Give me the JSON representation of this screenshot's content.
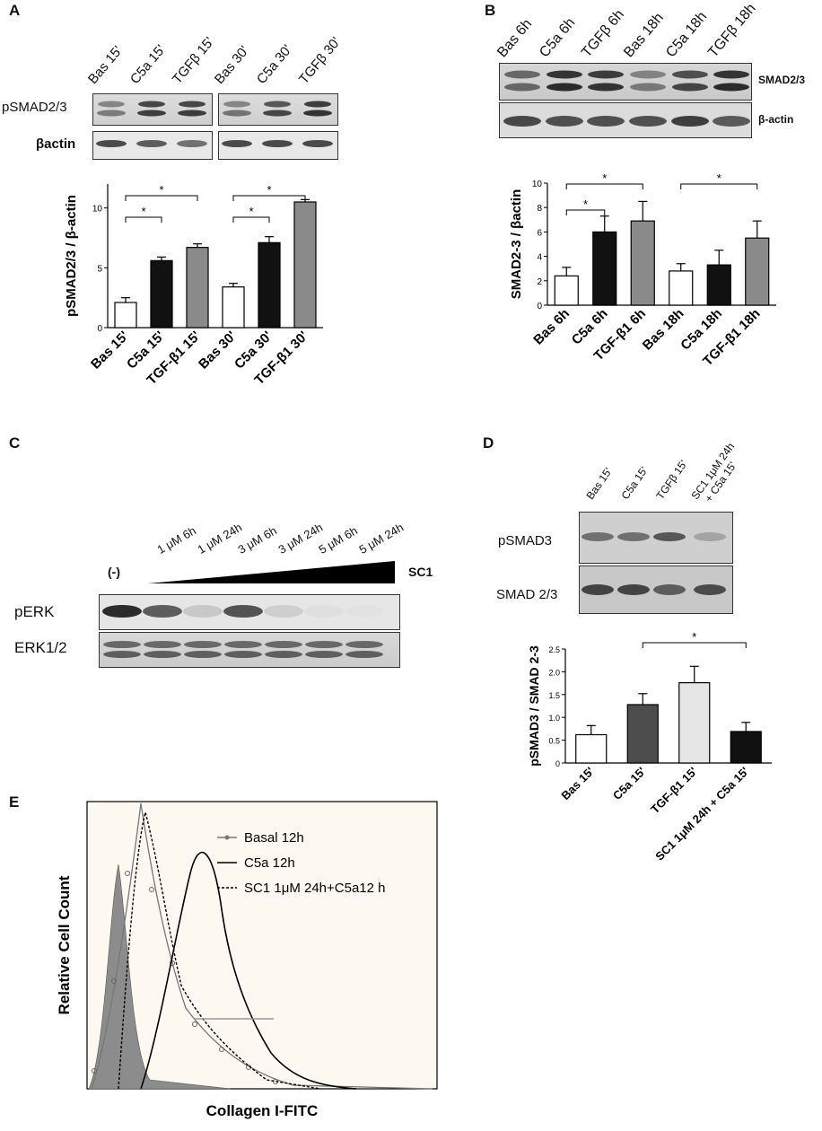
{
  "panels": {
    "A": {
      "letter": "A",
      "lanes": [
        "Bas 15'",
        "C5a 15'",
        "TGFβ 15'",
        "Bas 30'",
        "C5a 30'",
        "TGFβ 30'"
      ],
      "blot_rows": [
        "pSMAD2/3",
        "βactin"
      ]
    },
    "B": {
      "letter": "B",
      "lanes": [
        "Bas 6h",
        "C5a 6h",
        "TGFβ 6h",
        "Bas 18h",
        "C5a 18h",
        "TGFβ 18h"
      ],
      "blot_rows": [
        "SMAD2/3",
        "β-actin"
      ]
    },
    "C": {
      "letter": "C",
      "lanes": [
        "1 μM 6h",
        "1 μM 24h",
        "3 μM 6h",
        "3 μM 24h",
        "5 μM 6h",
        "5 μM 24h"
      ],
      "control_label": "(-)",
      "treatment_label": "SC1",
      "blot_rows": [
        "pERK",
        "ERK1/2"
      ]
    },
    "D": {
      "letter": "D",
      "lanes": [
        "Bas 15'",
        "C5a 15'",
        "TGFβ 15'",
        "SC1 1μM 24h",
        "+ C5a 15'"
      ],
      "blot_rows": [
        "pSMAD3",
        "SMAD 2/3"
      ]
    },
    "E": {
      "letter": "E"
    }
  },
  "chart_data": [
    {
      "id": "A",
      "type": "bar",
      "ylabel": "pSMAD2/3 / β-actin",
      "ylim": [
        0,
        12
      ],
      "yticks": [
        "0",
        "5",
        "10"
      ],
      "categories": [
        "Bas 15'",
        "C5a 15'",
        "TGF-β1 15'",
        "Bas 30'",
        "C5a 30'",
        "TGF-β1 30'"
      ],
      "values": [
        2.1,
        5.6,
        6.7,
        3.4,
        7.1,
        10.5
      ],
      "errors": [
        0.4,
        0.3,
        0.3,
        0.3,
        0.5,
        0.2
      ],
      "colors": [
        "#ffffff",
        "#111111",
        "#8a8a8a",
        "#ffffff",
        "#111111",
        "#8a8a8a"
      ],
      "significance": [
        {
          "from": 0,
          "to": 1,
          "label": "*",
          "level": 1
        },
        {
          "from": 0,
          "to": 2,
          "label": "*",
          "level": 2
        },
        {
          "from": 3,
          "to": 4,
          "label": "*",
          "level": 1
        },
        {
          "from": 3,
          "to": 5,
          "label": "*",
          "level": 2
        }
      ]
    },
    {
      "id": "B",
      "type": "bar",
      "ylabel": "SMAD2-3 / βactin",
      "ylim": [
        0,
        10
      ],
      "yticks": [
        "0",
        "2",
        "4",
        "6",
        "8",
        "10"
      ],
      "categories": [
        "Bas 6h",
        "C5a 6h",
        "TGF-β1 6h",
        "Bas 18h",
        "C5a 18h",
        "TGF-β1 18h"
      ],
      "values": [
        2.4,
        6.0,
        6.9,
        2.8,
        3.3,
        5.5
      ],
      "errors": [
        0.7,
        1.3,
        1.6,
        0.6,
        1.2,
        1.4
      ],
      "colors": [
        "#ffffff",
        "#111111",
        "#8a8a8a",
        "#ffffff",
        "#111111",
        "#8a8a8a"
      ],
      "significance": [
        {
          "from": 0,
          "to": 1,
          "label": "*",
          "level": 1
        },
        {
          "from": 0,
          "to": 2,
          "label": "*",
          "level": 2
        },
        {
          "from": 3,
          "to": 5,
          "label": "*",
          "level": 2
        }
      ]
    },
    {
      "id": "D",
      "type": "bar",
      "ylabel": "pSMAD3 / SMAD 2-3",
      "ylim": [
        0,
        2.5
      ],
      "yticks": [
        "0",
        "0.5",
        "1.0",
        "1.5",
        "2.0",
        "2.5"
      ],
      "categories": [
        "Bas 15'",
        "C5a 15'",
        "TGF-β1 15'",
        "SC1 1μM 24h + C5a 15'"
      ],
      "values": [
        0.62,
        1.28,
        1.76,
        0.69
      ],
      "errors": [
        0.2,
        0.24,
        0.36,
        0.2
      ],
      "colors": [
        "#ffffff",
        "#4d4d4d",
        "#e6e6e6",
        "#111111"
      ],
      "significance": [
        {
          "from": 1,
          "to": 3,
          "label": "*",
          "level": 1
        }
      ]
    },
    {
      "id": "E",
      "type": "area",
      "xlabel": "Collagen I-FITC",
      "ylabel": "Relative Cell Count",
      "series": [
        {
          "name": "Basal 12h",
          "style": "gray-circles"
        },
        {
          "name": "C5a 12h",
          "style": "solid-black"
        },
        {
          "name": "SC1 1μM 24h+C5a12 h",
          "style": "dashed-black"
        }
      ]
    }
  ]
}
